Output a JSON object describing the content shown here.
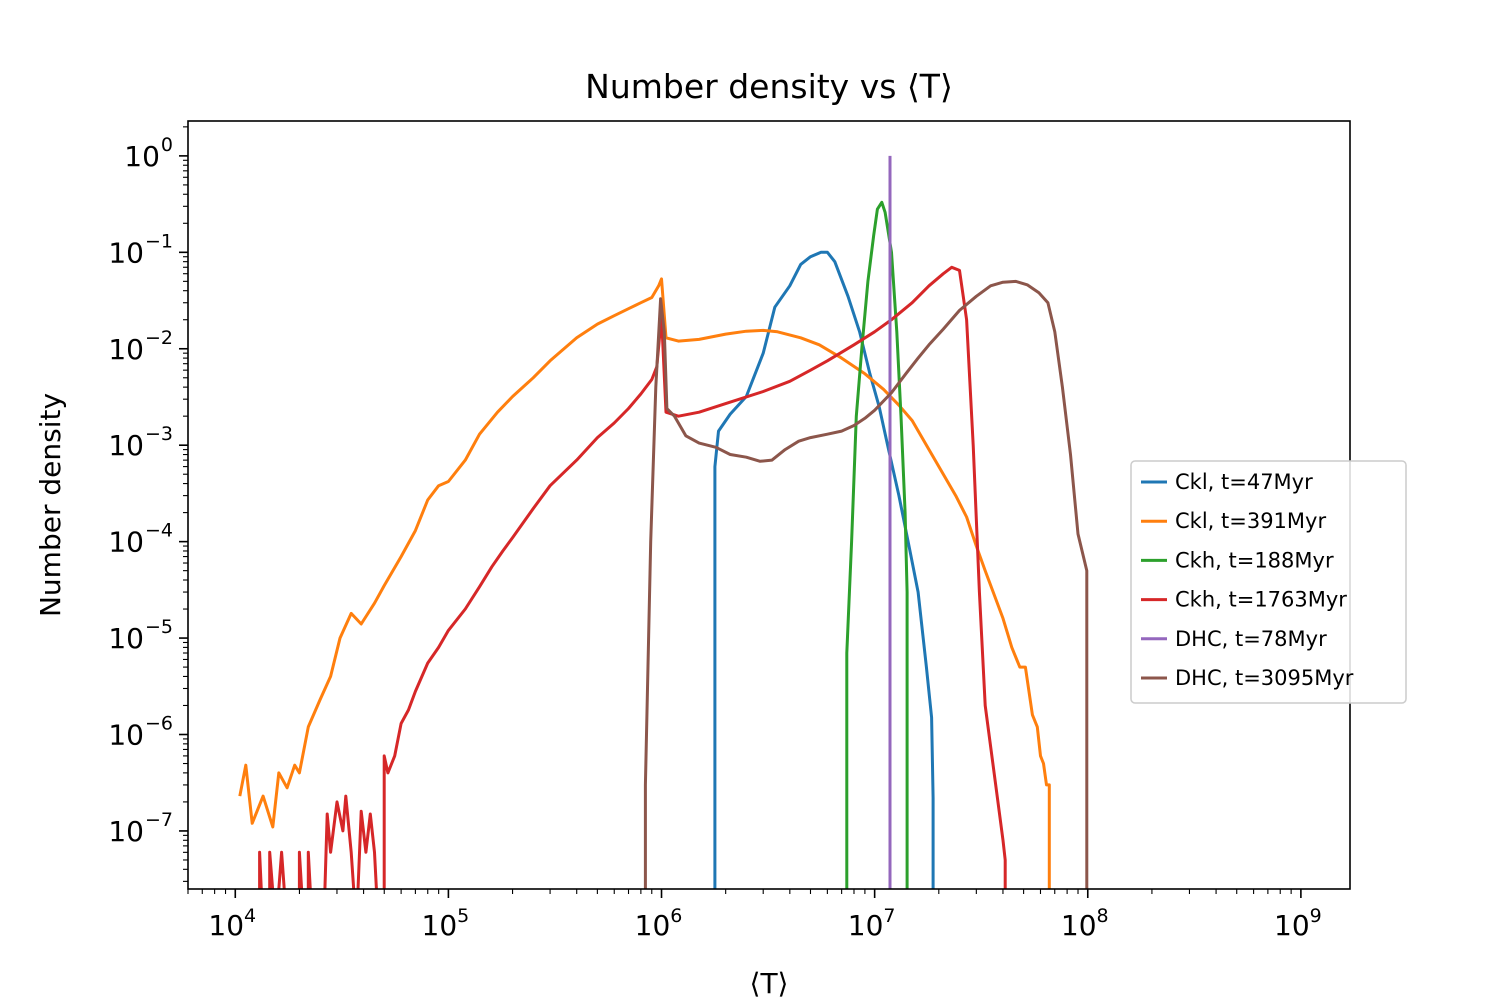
{
  "chart_data": {
    "type": "line",
    "title": "Number density vs ⟨T⟩",
    "xlabel": "⟨T⟩",
    "ylabel": "Number density",
    "xscale": "log",
    "yscale": "log",
    "xlim": [
      6000,
      1700000000
    ],
    "ylim": [
      2.5e-08,
      2.3
    ],
    "x_ticks": [
      {
        "base": "10",
        "exp": "4",
        "value": 10000
      },
      {
        "base": "10",
        "exp": "5",
        "value": 100000
      },
      {
        "base": "10",
        "exp": "6",
        "value": 1000000
      },
      {
        "base": "10",
        "exp": "7",
        "value": 10000000
      },
      {
        "base": "10",
        "exp": "8",
        "value": 100000000
      },
      {
        "base": "10",
        "exp": "9",
        "value": 1000000000
      }
    ],
    "y_ticks": [
      {
        "base": "10",
        "exp": "−7",
        "value": 1e-07
      },
      {
        "base": "10",
        "exp": "−6",
        "value": 1e-06
      },
      {
        "base": "10",
        "exp": "−5",
        "value": 1e-05
      },
      {
        "base": "10",
        "exp": "−4",
        "value": 0.0001
      },
      {
        "base": "10",
        "exp": "−3",
        "value": 0.001
      },
      {
        "base": "10",
        "exp": "−2",
        "value": 0.01
      },
      {
        "base": "10",
        "exp": "−1",
        "value": 0.1
      },
      {
        "base": "10",
        "exp": "0",
        "value": 1
      }
    ],
    "grid": false,
    "legend_position": "right",
    "series": [
      {
        "name": "Ckl, t=47Myr",
        "color": "#1f77b4",
        "points": [
          [
            1780000.0,
            1e-09
          ],
          [
            1780000.0,
            0.0006
          ],
          [
            1850000.0,
            0.0014
          ],
          [
            2100000.0,
            0.0021
          ],
          [
            2500000.0,
            0.0032
          ],
          [
            3000000.0,
            0.009
          ],
          [
            3400000.0,
            0.027
          ],
          [
            4000000.0,
            0.045
          ],
          [
            4500000.0,
            0.075
          ],
          [
            5000000.0,
            0.09
          ],
          [
            5600000.0,
            0.1
          ],
          [
            6000000.0,
            0.1
          ],
          [
            6500000.0,
            0.08
          ],
          [
            7500000.0,
            0.035
          ],
          [
            8500000.0,
            0.015
          ],
          [
            9500000.0,
            0.0055
          ],
          [
            10500000.0,
            0.0025
          ],
          [
            11500000.0,
            0.001
          ],
          [
            13000000.0,
            0.0003
          ],
          [
            14500000.0,
            9e-05
          ],
          [
            16000000.0,
            3e-05
          ],
          [
            17500000.0,
            5e-06
          ],
          [
            18500000.0,
            1.5e-06
          ],
          [
            18800000.0,
            2.2e-07
          ],
          [
            18800000.0,
            1e-09
          ]
        ]
      },
      {
        "name": "Ckl, t=391Myr",
        "color": "#ff7f0e",
        "points": [
          [
            10500.0,
            2.3e-07
          ],
          [
            11200.0,
            4.8e-07
          ],
          [
            12000.0,
            1.2e-07
          ],
          [
            13500.0,
            2.3e-07
          ],
          [
            15000.0,
            1.1e-07
          ],
          [
            16000.0,
            4e-07
          ],
          [
            17500.0,
            2.8e-07
          ],
          [
            19000.0,
            4.8e-07
          ],
          [
            20000.0,
            4e-07
          ],
          [
            22000.0,
            1.2e-06
          ],
          [
            25000.0,
            2.3e-06
          ],
          [
            28000.0,
            4e-06
          ],
          [
            31000.0,
            1e-05
          ],
          [
            35000.0,
            1.8e-05
          ],
          [
            39000.0,
            1.4e-05
          ],
          [
            45000.0,
            2.3e-05
          ],
          [
            50000.0,
            3.5e-05
          ],
          [
            60000.0,
            7e-05
          ],
          [
            70000.0,
            0.00013
          ],
          [
            80000.0,
            0.00027
          ],
          [
            90000.0,
            0.00038
          ],
          [
            100000.0,
            0.00042
          ],
          [
            120000.0,
            0.0007
          ],
          [
            140000.0,
            0.0013
          ],
          [
            170000.0,
            0.0022
          ],
          [
            200000.0,
            0.0032
          ],
          [
            250000.0,
            0.005
          ],
          [
            300000.0,
            0.0075
          ],
          [
            400000.0,
            0.013
          ],
          [
            500000.0,
            0.018
          ],
          [
            600000.0,
            0.022
          ],
          [
            700000.0,
            0.026
          ],
          [
            800000.0,
            0.03
          ],
          [
            900000.0,
            0.034
          ],
          [
            970000.0,
            0.045
          ],
          [
            1000000.0,
            0.053
          ],
          [
            1050000.0,
            0.013
          ],
          [
            1200000.0,
            0.012
          ],
          [
            1500000.0,
            0.0125
          ],
          [
            2000000.0,
            0.0142
          ],
          [
            2500000.0,
            0.0152
          ],
          [
            3000000.0,
            0.0155
          ],
          [
            3500000.0,
            0.015
          ],
          [
            4500000.0,
            0.013
          ],
          [
            5500000.0,
            0.011
          ],
          [
            7000000.0,
            0.008
          ],
          [
            9000000.0,
            0.0055
          ],
          [
            11000000.0,
            0.0038
          ],
          [
            13000000.0,
            0.0026
          ],
          [
            15000000.0,
            0.0018
          ],
          [
            18000000.0,
            0.0009
          ],
          [
            21000000.0,
            0.0005
          ],
          [
            24000000.0,
            0.0003
          ],
          [
            27000000.0,
            0.00018
          ],
          [
            30000000.0,
            9e-05
          ],
          [
            33000000.0,
            5e-05
          ],
          [
            36000000.0,
            3e-05
          ],
          [
            40000000.0,
            1.6e-05
          ],
          [
            44000000.0,
            8e-06
          ],
          [
            48000000.0,
            5e-06
          ],
          [
            51000000.0,
            5e-06
          ],
          [
            55000000.0,
            1.6e-06
          ],
          [
            58000000.0,
            1.2e-06
          ],
          [
            60000000.0,
            6e-07
          ],
          [
            62000000.0,
            5e-07
          ],
          [
            64000000.0,
            3e-07
          ],
          [
            66000000.0,
            3e-07
          ],
          [
            66000000.0,
            1e-09
          ]
        ]
      },
      {
        "name": "Ckh, t=188Myr",
        "color": "#2ca02c",
        "points": [
          [
            7400000.0,
            1e-09
          ],
          [
            7400000.0,
            7e-06
          ],
          [
            7800000.0,
            0.0001
          ],
          [
            8200000.0,
            0.002
          ],
          [
            8700000.0,
            0.01
          ],
          [
            9300000.0,
            0.05
          ],
          [
            9900000.0,
            0.15
          ],
          [
            10300000.0,
            0.28
          ],
          [
            10800000.0,
            0.33
          ],
          [
            11200000.0,
            0.26
          ],
          [
            12000000.0,
            0.1
          ],
          [
            12700000.0,
            0.015
          ],
          [
            13300000.0,
            0.002
          ],
          [
            13900000.0,
            0.0002
          ],
          [
            14200000.0,
            3e-05
          ],
          [
            14200000.0,
            1e-09
          ]
        ]
      },
      {
        "name": "Ckh, t=1763Myr",
        "color": "#d62728",
        "points": [
          [
            13000.0,
            1e-09
          ],
          [
            13000.0,
            6e-08
          ],
          [
            13500.0,
            1e-09
          ],
          [
            14500.0,
            1e-09
          ],
          [
            14500.0,
            6e-08
          ],
          [
            15500.0,
            1e-09
          ],
          [
            16500.0,
            6e-08
          ],
          [
            17500.0,
            1e-09
          ],
          [
            20000.0,
            1e-09
          ],
          [
            20000.0,
            6e-08
          ],
          [
            21000.0,
            1e-09
          ],
          [
            22000.0,
            1e-09
          ],
          [
            22000.0,
            6e-08
          ],
          [
            23000.0,
            1e-09
          ],
          [
            26000.0,
            1e-09
          ],
          [
            27000.0,
            1.5e-07
          ],
          [
            28000.0,
            6e-08
          ],
          [
            30000.0,
            2e-07
          ],
          [
            32000.0,
            1e-07
          ],
          [
            33000.0,
            2.3e-07
          ],
          [
            35000.0,
            6e-08
          ],
          [
            37000.0,
            1e-09
          ],
          [
            39000.0,
            1.6e-07
          ],
          [
            41000.0,
            6e-08
          ],
          [
            43000.0,
            1.5e-07
          ],
          [
            45000.0,
            6e-08
          ],
          [
            47000.0,
            1e-09
          ],
          [
            50000.0,
            1e-09
          ],
          [
            50000.0,
            6e-07
          ],
          [
            52000.0,
            4e-07
          ],
          [
            56000.0,
            6e-07
          ],
          [
            60000.0,
            1.3e-06
          ],
          [
            65000.0,
            1.8e-06
          ],
          [
            70000.0,
            2.8e-06
          ],
          [
            80000.0,
            5.5e-06
          ],
          [
            90000.0,
            8e-06
          ],
          [
            100000.0,
            1.2e-05
          ],
          [
            120000.0,
            2e-05
          ],
          [
            140000.0,
            3.4e-05
          ],
          [
            160000.0,
            5.5e-05
          ],
          [
            180000.0,
            8e-05
          ],
          [
            200000.0,
            0.00011
          ],
          [
            250000.0,
            0.00022
          ],
          [
            300000.0,
            0.00038
          ],
          [
            400000.0,
            0.0007
          ],
          [
            500000.0,
            0.0012
          ],
          [
            600000.0,
            0.0017
          ],
          [
            700000.0,
            0.0024
          ],
          [
            800000.0,
            0.0034
          ],
          [
            900000.0,
            0.0048
          ],
          [
            950000.0,
            0.0065
          ],
          [
            1000000.0,
            0.022
          ],
          [
            1050000.0,
            0.0022
          ],
          [
            1200000.0,
            0.002
          ],
          [
            1500000.0,
            0.0022
          ],
          [
            2000000.0,
            0.0027
          ],
          [
            3000000.0,
            0.0036
          ],
          [
            4000000.0,
            0.0046
          ],
          [
            5000000.0,
            0.006
          ],
          [
            6000000.0,
            0.0075
          ],
          [
            8000000.0,
            0.011
          ],
          [
            10000000.0,
            0.015
          ],
          [
            12000000.0,
            0.02
          ],
          [
            15000000.0,
            0.03
          ],
          [
            18000000.0,
            0.045
          ],
          [
            21000000.0,
            0.06
          ],
          [
            23000000.0,
            0.07
          ],
          [
            25000000.0,
            0.065
          ],
          [
            27000000.0,
            0.02
          ],
          [
            29000000.0,
            0.001
          ],
          [
            31000000.0,
            3e-05
          ],
          [
            33000000.0,
            2e-06
          ],
          [
            37000000.0,
            3e-07
          ],
          [
            40000000.0,
            8e-08
          ],
          [
            41000000.0,
            5e-08
          ],
          [
            41000000.0,
            1e-09
          ]
        ]
      },
      {
        "name": "DHC, t=78Myr",
        "color": "#9467bd",
        "points": [
          [
            11800000.0,
            1e-09
          ],
          [
            11800000.0,
            1.0
          ]
        ]
      },
      {
        "name": "DHC, t=3095Myr",
        "color": "#8c564b",
        "points": [
          [
            840000.0,
            1e-09
          ],
          [
            840000.0,
            3e-07
          ],
          [
            890000.0,
            0.0001
          ],
          [
            940000.0,
            0.004
          ],
          [
            990000.0,
            0.033
          ],
          [
            1030000.0,
            0.015
          ],
          [
            1060000.0,
            0.0024
          ],
          [
            1150000.0,
            0.002
          ],
          [
            1300000.0,
            0.00125
          ],
          [
            1500000.0,
            0.00105
          ],
          [
            1800000.0,
            0.00095
          ],
          [
            2100000.0,
            0.0008
          ],
          [
            2500000.0,
            0.00075
          ],
          [
            2900000.0,
            0.00068
          ],
          [
            3300000.0,
            0.0007
          ],
          [
            3800000.0,
            0.0009
          ],
          [
            4400000.0,
            0.0011
          ],
          [
            5000000.0,
            0.0012
          ],
          [
            6000000.0,
            0.0013
          ],
          [
            7000000.0,
            0.0014
          ],
          [
            8000000.0,
            0.0016
          ],
          [
            9000000.0,
            0.0019
          ],
          [
            10000000.0,
            0.0023
          ],
          [
            12000000.0,
            0.0035
          ],
          [
            14000000.0,
            0.0055
          ],
          [
            16000000.0,
            0.008
          ],
          [
            18000000.0,
            0.011
          ],
          [
            21000000.0,
            0.016
          ],
          [
            25000000.0,
            0.025
          ],
          [
            30000000.0,
            0.035
          ],
          [
            35000000.0,
            0.045
          ],
          [
            40000000.0,
            0.049
          ],
          [
            46000000.0,
            0.05
          ],
          [
            52000000.0,
            0.046
          ],
          [
            59000000.0,
            0.038
          ],
          [
            65000000.0,
            0.03
          ],
          [
            70000000.0,
            0.015
          ],
          [
            76000000.0,
            0.004
          ],
          [
            83000000.0,
            0.0008
          ],
          [
            90000000.0,
            0.00012
          ],
          [
            99000000.0,
            5e-05
          ],
          [
            99000000.0,
            1e-09
          ]
        ]
      }
    ]
  }
}
